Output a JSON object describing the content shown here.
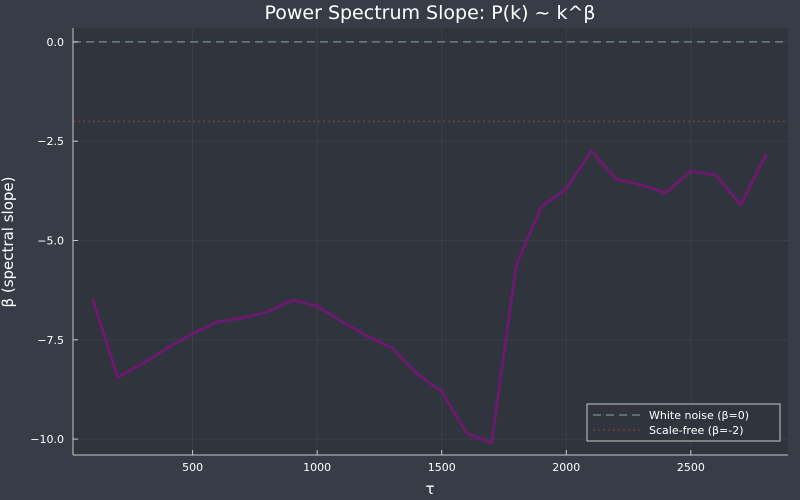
{
  "chart_data": {
    "type": "line",
    "title": "Power Spectrum Slope: P(k) ~ k^β",
    "xlabel": "τ",
    "ylabel": "β (spectral slope)",
    "xlim": [
      20,
      2890
    ],
    "ylim": [
      -10.4,
      0.35
    ],
    "x_ticks": [
      500,
      1000,
      1500,
      2000,
      2500
    ],
    "y_ticks": [
      0.0,
      -2.5,
      -5.0,
      -7.5,
      -10.0
    ],
    "x_tick_labels": [
      "500",
      "1000",
      "1500",
      "2000",
      "2500"
    ],
    "y_tick_labels": [
      "0.0",
      "−2.5",
      "−5.0",
      "−7.5",
      "−10.0"
    ],
    "grid": true,
    "legend_position": "bottom-right",
    "series": [
      {
        "color": "#6b1a6e",
        "x": [
          100,
          200,
          300,
          400,
          500,
          600,
          700,
          800,
          900,
          1000,
          1100,
          1200,
          1300,
          1400,
          1500,
          1600,
          1700,
          1800,
          1900,
          2000,
          2100,
          2200,
          2300,
          2400,
          2500,
          2600,
          2700,
          2800
        ],
        "y": [
          -6.5,
          -8.45,
          -8.1,
          -7.7,
          -7.35,
          -7.05,
          -6.95,
          -6.8,
          -6.5,
          -6.65,
          -7.05,
          -7.4,
          -7.7,
          -8.35,
          -8.8,
          -9.85,
          -10.1,
          -5.6,
          -4.15,
          -3.7,
          -2.75,
          -3.45,
          -3.6,
          -3.8,
          -3.25,
          -3.35,
          -4.1,
          -2.85
        ]
      }
    ],
    "reference_lines": [
      {
        "name": "White noise (β=0)",
        "y": 0,
        "color": "#6e7f86",
        "style": "dashed"
      },
      {
        "name": "Scale-free (β=-2)",
        "y": -2,
        "color": "#7a3a42",
        "style": "dotted"
      }
    ]
  }
}
